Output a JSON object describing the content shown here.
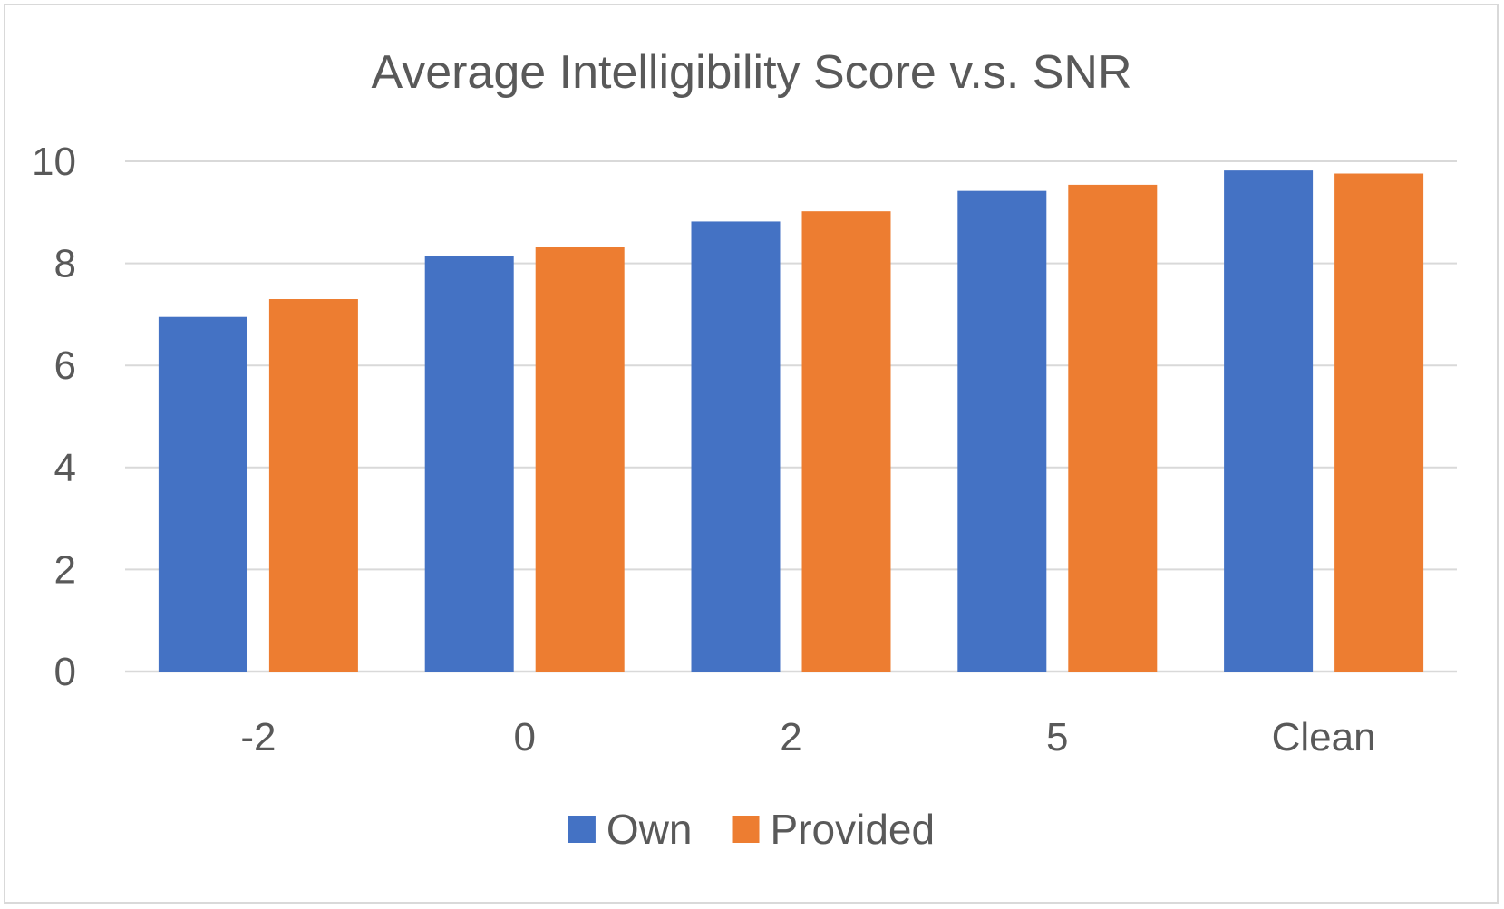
{
  "chart_data": {
    "type": "bar",
    "title": "Average Intelligibility Score v.s. SNR",
    "xlabel": "",
    "ylabel": "",
    "categories": [
      "-2",
      "0",
      "2",
      "5",
      "Clean"
    ],
    "series": [
      {
        "name": "Own",
        "color": "#4472C4",
        "values": [
          6.95,
          8.15,
          8.82,
          9.42,
          9.82
        ]
      },
      {
        "name": "Provided",
        "color": "#ED7D31",
        "values": [
          7.3,
          8.33,
          9.02,
          9.54,
          9.76
        ]
      }
    ],
    "ylim": [
      0,
      10
    ],
    "yticks": [
      "0",
      "2",
      "4",
      "6",
      "8",
      "10"
    ],
    "grid": true,
    "legend_position": "bottom"
  }
}
